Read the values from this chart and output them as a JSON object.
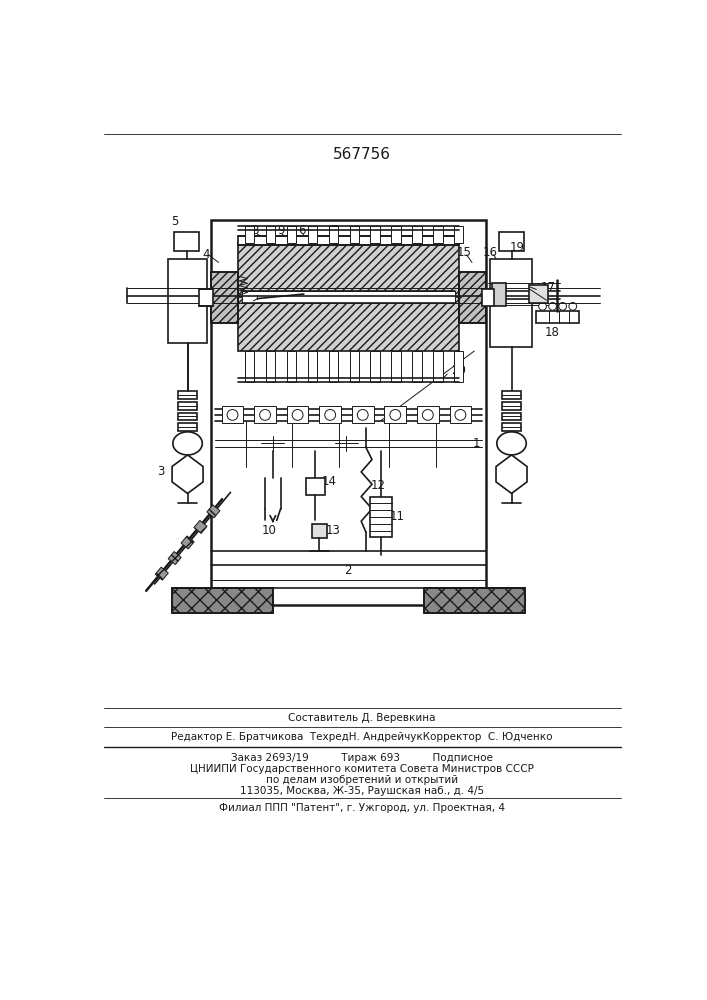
{
  "patent_number": "567756",
  "composer": "Составитель Д. Веревкина",
  "editor_line": "Редактор Е. Братчикова  ТехредН. АндрейчукКорректор  С. Юдченко",
  "order_line": "Заказ 2693/19          Тираж 693          Подписное",
  "institute1": "ЦНИИПИ Государственного комитета Совета Министров СССР",
  "institute2": "по делам изобретений и открытий",
  "address": "113035, Москва, Ж-35, Раушская наб., д. 4/5",
  "patent_office": "Филиал ППП \"Патент\", г. Ужгород, ул. Проектная, 4",
  "bg_color": "#ffffff",
  "line_color": "#1a1a1a"
}
